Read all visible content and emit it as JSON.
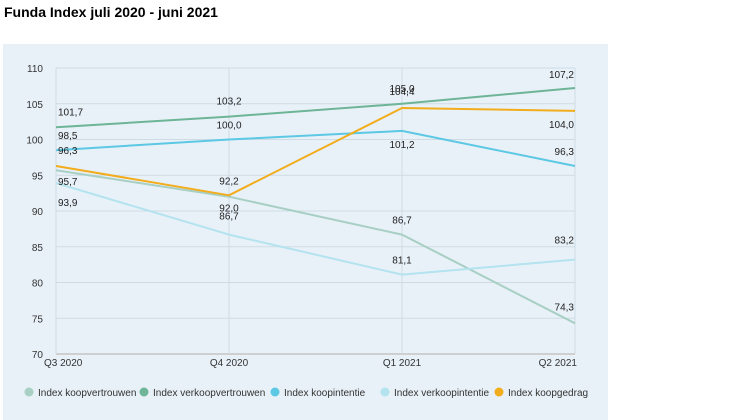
{
  "title": "Funda Index juli 2020 - juni 2021",
  "chart_data": {
    "type": "line",
    "categories": [
      "Q3 2020",
      "Q4 2020",
      "Q1 2021",
      "Q2 2021"
    ],
    "ylim": [
      70,
      110
    ],
    "yticks": [
      "110",
      "105",
      "100",
      "95",
      "90",
      "85",
      "80",
      "75",
      "70"
    ],
    "grid": true,
    "legend_placement": "bottom",
    "series": [
      {
        "name": "Index koopvertrouwen",
        "color": "#a8cfc4",
        "values": [
          95.7,
          92.0,
          86.7,
          74.3
        ],
        "labels": [
          "95,7",
          "92,0",
          "86,7",
          "74,3"
        ]
      },
      {
        "name": "Index verkoopvertrouwen",
        "color": "#6db596",
        "values": [
          101.7,
          103.2,
          105.0,
          107.2
        ],
        "labels": [
          "101,7",
          "103,2",
          "105,0",
          "107,2"
        ]
      },
      {
        "name": "Index koopintentie",
        "color": "#5cc8e4",
        "values": [
          98.5,
          100.0,
          101.2,
          96.3
        ],
        "labels": [
          "98,5",
          "100,0",
          "101,2",
          "96,3"
        ]
      },
      {
        "name": "Index verkoopintentie",
        "color": "#b3e3ef",
        "values": [
          93.9,
          86.7,
          81.1,
          83.2
        ],
        "labels": [
          "93,9",
          "86,7",
          "81,1",
          "83,2"
        ]
      },
      {
        "name": "Index koopgedrag",
        "color": "#f2ac1c",
        "values": [
          96.3,
          92.2,
          104.4,
          104.0
        ],
        "labels": [
          "96,3",
          "92,2",
          "104,4",
          "104,0"
        ]
      }
    ]
  }
}
